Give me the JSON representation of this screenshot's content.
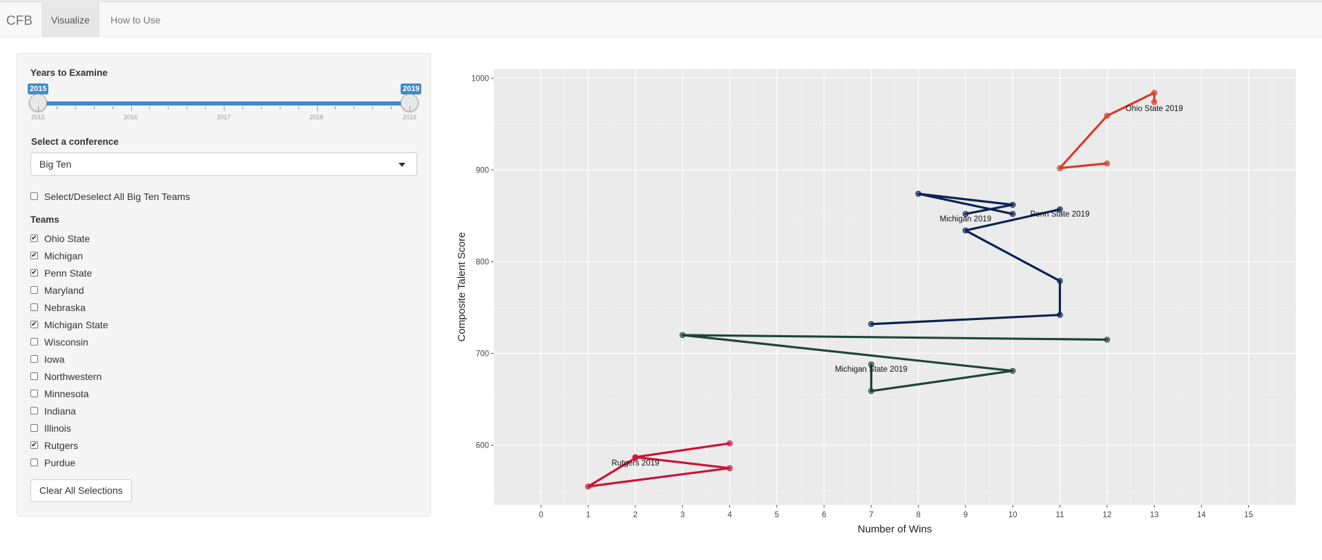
{
  "navbar": {
    "brand": "CFB",
    "tabs": [
      {
        "label": "Visualize",
        "active": true
      },
      {
        "label": "How to Use",
        "active": false
      }
    ]
  },
  "sidebar": {
    "years_label": "Years to Examine",
    "slider": {
      "min": 2015,
      "max": 2019,
      "from": "2015",
      "to": "2019",
      "grid_labels": [
        "2015",
        "2016",
        "2017",
        "2018",
        "2019"
      ]
    },
    "conference_label": "Select a conference",
    "conference_value": "Big Ten",
    "select_all_label": "Select/Deselect All Big Ten Teams",
    "select_all_checked": false,
    "teams_label": "Teams",
    "teams": [
      {
        "name": "Ohio State",
        "checked": true
      },
      {
        "name": "Michigan",
        "checked": true
      },
      {
        "name": "Penn State",
        "checked": true
      },
      {
        "name": "Maryland",
        "checked": false
      },
      {
        "name": "Nebraska",
        "checked": false
      },
      {
        "name": "Michigan State",
        "checked": true
      },
      {
        "name": "Wisconsin",
        "checked": false
      },
      {
        "name": "Iowa",
        "checked": false
      },
      {
        "name": "Northwestern",
        "checked": false
      },
      {
        "name": "Minnesota",
        "checked": false
      },
      {
        "name": "Indiana",
        "checked": false
      },
      {
        "name": "Illinois",
        "checked": false
      },
      {
        "name": "Rutgers",
        "checked": true
      },
      {
        "name": "Purdue",
        "checked": false
      }
    ],
    "clear_button": "Clear All Selections"
  },
  "chart_data": {
    "type": "line",
    "xlabel": "Number of Wins",
    "ylabel": "Composite Talent Score",
    "xlim": [
      -1,
      16
    ],
    "ylim": [
      535,
      1010
    ],
    "xticks": [
      0,
      1,
      2,
      3,
      4,
      5,
      6,
      7,
      8,
      9,
      10,
      11,
      12,
      13,
      14,
      15
    ],
    "yticks": [
      600,
      700,
      800,
      900,
      1000
    ],
    "grid": true,
    "background": "#ebebeb",
    "series": [
      {
        "name": "Ohio State",
        "color": "#da3a25",
        "points": [
          [
            12,
            907
          ],
          [
            11,
            902
          ],
          [
            12,
            959
          ],
          [
            13,
            984
          ],
          [
            13,
            974
          ]
        ],
        "label": "Ohio State 2019",
        "label_at": [
          13.0,
          964
        ]
      },
      {
        "name": "Penn State",
        "color": "#0a2352",
        "points": [
          [
            7,
            732
          ],
          [
            11,
            742
          ],
          [
            11,
            779
          ],
          [
            9,
            834
          ],
          [
            11,
            857
          ]
        ],
        "label": "Penn State 2019",
        "label_at": [
          11.0,
          849
        ]
      },
      {
        "name": "Michigan",
        "color": "#0a2352",
        "points": [
          [
            10,
            852
          ],
          [
            8,
            874
          ],
          [
            10,
            862
          ],
          [
            9,
            852
          ]
        ],
        "label": "Michigan 2019",
        "label_at": [
          9.0,
          844
        ]
      },
      {
        "name": "Michigan State",
        "color": "#1d4535",
        "points": [
          [
            12,
            715
          ],
          [
            3,
            720
          ],
          [
            10,
            681
          ],
          [
            7,
            659
          ],
          [
            7,
            688
          ]
        ],
        "label": "Michigan State 2019",
        "label_at": [
          7.0,
          680
        ]
      },
      {
        "name": "Rutgers",
        "color": "#cc1134",
        "points": [
          [
            4,
            602
          ],
          [
            2,
            587
          ],
          [
            4,
            575
          ],
          [
            1,
            555
          ],
          [
            2,
            586
          ]
        ],
        "label": "Rutgers 2019",
        "label_at": [
          2.0,
          578
        ]
      }
    ]
  }
}
